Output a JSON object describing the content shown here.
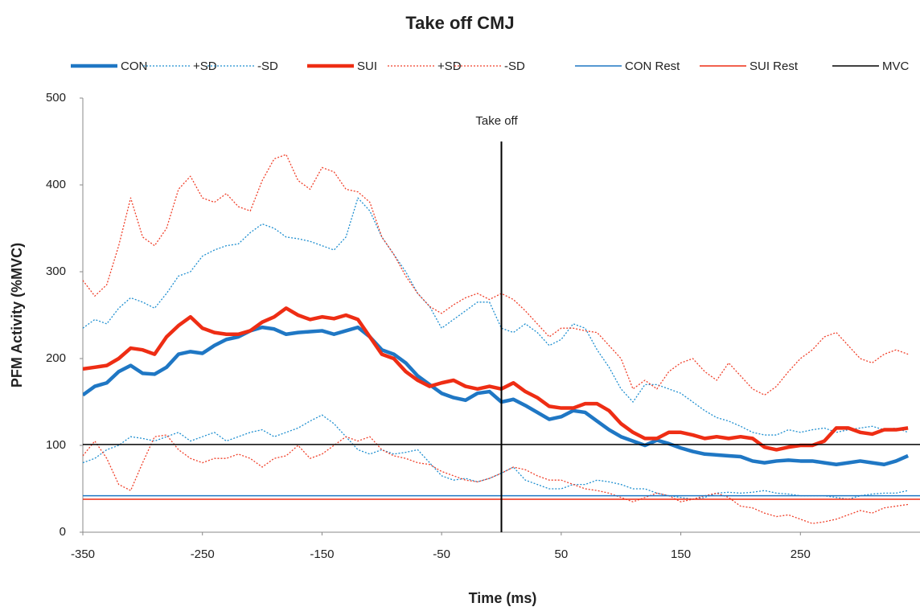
{
  "chart_data": {
    "type": "line",
    "title": "Take off CMJ",
    "x_label": "Time (ms)",
    "y_label": "PFM Activity (%MVC)",
    "xlim": [
      -350,
      350
    ],
    "xticks": [
      -350,
      -250,
      -150,
      -50,
      50,
      150,
      250
    ],
    "ylim": [
      0,
      500
    ],
    "yticks": [
      0,
      100,
      200,
      300,
      400,
      500
    ],
    "vline": {
      "x": 0,
      "top": 450,
      "label": "Take off"
    },
    "x": [
      -350,
      -340,
      -330,
      -320,
      -310,
      -300,
      -290,
      -280,
      -270,
      -260,
      -250,
      -240,
      -230,
      -220,
      -210,
      -200,
      -190,
      -180,
      -170,
      -160,
      -150,
      -140,
      -130,
      -120,
      -110,
      -100,
      -90,
      -80,
      -70,
      -60,
      -50,
      -40,
      -30,
      -20,
      -10,
      0,
      10,
      20,
      30,
      40,
      50,
      60,
      70,
      80,
      90,
      100,
      110,
      120,
      130,
      140,
      150,
      160,
      170,
      180,
      190,
      200,
      210,
      220,
      230,
      240,
      250,
      260,
      270,
      280,
      290,
      300,
      310,
      320,
      330,
      340
    ],
    "series": [
      {
        "name": "CON",
        "color": "#1f77c4",
        "style": "solid",
        "width": 4.5,
        "values": [
          158,
          168,
          172,
          185,
          192,
          183,
          182,
          190,
          205,
          208,
          206,
          215,
          222,
          225,
          232,
          236,
          234,
          228,
          230,
          231,
          232,
          228,
          232,
          236,
          225,
          210,
          205,
          195,
          180,
          170,
          160,
          155,
          152,
          160,
          162,
          150,
          153,
          146,
          138,
          130,
          133,
          140,
          138,
          128,
          118,
          110,
          105,
          100,
          106,
          102,
          97,
          93,
          90,
          89,
          88,
          87,
          82,
          80,
          82,
          83,
          82,
          82,
          80,
          78,
          80,
          82,
          80,
          78,
          82,
          88
        ]
      },
      {
        "name": "+SD",
        "color": "#1f8fd0",
        "style": "dotted",
        "width": 1.3,
        "values": [
          235,
          245,
          240,
          258,
          270,
          265,
          258,
          275,
          295,
          300,
          318,
          325,
          330,
          332,
          345,
          355,
          350,
          340,
          338,
          335,
          330,
          325,
          340,
          385,
          370,
          340,
          320,
          300,
          275,
          260,
          235,
          245,
          255,
          265,
          265,
          235,
          230,
          240,
          230,
          215,
          222,
          240,
          235,
          210,
          190,
          165,
          150,
          170,
          170,
          165,
          160,
          150,
          140,
          132,
          128,
          122,
          115,
          112,
          112,
          118,
          115,
          118,
          120,
          115,
          118,
          120,
          122,
          118,
          120,
          115
        ]
      },
      {
        "name": "-SD",
        "color": "#1f8fd0",
        "style": "dotted",
        "width": 1.3,
        "values": [
          80,
          85,
          95,
          100,
          110,
          108,
          105,
          110,
          115,
          105,
          110,
          115,
          105,
          110,
          115,
          118,
          110,
          115,
          120,
          128,
          135,
          125,
          110,
          95,
          90,
          95,
          90,
          92,
          95,
          80,
          65,
          60,
          62,
          58,
          62,
          68,
          75,
          60,
          55,
          50,
          50,
          55,
          55,
          60,
          58,
          55,
          50,
          50,
          45,
          42,
          40,
          38,
          40,
          45,
          46,
          45,
          46,
          48,
          45,
          44,
          42,
          42,
          42,
          40,
          38,
          42,
          44,
          45,
          45,
          48
        ]
      },
      {
        "name": "SUI",
        "color": "#ee2d14",
        "style": "solid",
        "width": 4.5,
        "values": [
          188,
          190,
          192,
          200,
          212,
          210,
          205,
          225,
          238,
          248,
          235,
          230,
          228,
          228,
          232,
          242,
          248,
          258,
          250,
          245,
          248,
          246,
          250,
          245,
          225,
          205,
          200,
          185,
          175,
          168,
          172,
          175,
          168,
          165,
          168,
          165,
          172,
          162,
          155,
          145,
          143,
          143,
          148,
          148,
          140,
          125,
          115,
          108,
          108,
          115,
          115,
          112,
          108,
          110,
          108,
          110,
          108,
          98,
          95,
          98,
          100,
          100,
          105,
          120,
          120,
          115,
          113,
          118,
          118,
          120
        ]
      },
      {
        "name": "+SD",
        "color": "#f0402a",
        "style": "dotted",
        "width": 1.3,
        "values": [
          290,
          272,
          285,
          330,
          385,
          340,
          330,
          350,
          395,
          410,
          385,
          380,
          390,
          375,
          370,
          405,
          430,
          435,
          405,
          395,
          420,
          415,
          395,
          392,
          380,
          340,
          320,
          295,
          275,
          260,
          252,
          262,
          270,
          275,
          268,
          275,
          268,
          255,
          240,
          225,
          235,
          235,
          232,
          230,
          215,
          200,
          165,
          175,
          165,
          185,
          195,
          200,
          185,
          175,
          195,
          180,
          165,
          158,
          168,
          185,
          200,
          210,
          225,
          230,
          215,
          200,
          195,
          205,
          210,
          205
        ]
      },
      {
        "name": "-SD",
        "color": "#f0402a",
        "style": "dotted",
        "width": 1.3,
        "values": [
          88,
          105,
          85,
          55,
          48,
          80,
          110,
          112,
          95,
          85,
          80,
          85,
          85,
          90,
          85,
          75,
          85,
          88,
          100,
          85,
          90,
          100,
          110,
          105,
          110,
          95,
          88,
          85,
          80,
          78,
          70,
          65,
          60,
          58,
          62,
          68,
          75,
          72,
          65,
          60,
          60,
          55,
          50,
          48,
          45,
          40,
          35,
          40,
          45,
          42,
          35,
          38,
          42,
          45,
          40,
          30,
          28,
          22,
          18,
          20,
          15,
          10,
          12,
          15,
          20,
          25,
          22,
          28,
          30,
          32
        ]
      },
      {
        "name": "CON Rest",
        "color": "#1f77c4",
        "style": "solid",
        "width": 1.5,
        "level": 42
      },
      {
        "name": "SUI Rest",
        "color": "#ee2d14",
        "style": "solid",
        "width": 1.5,
        "level": 38
      },
      {
        "name": "MVC",
        "color": "#000000",
        "style": "solid",
        "width": 1.5,
        "level": 101
      }
    ]
  }
}
